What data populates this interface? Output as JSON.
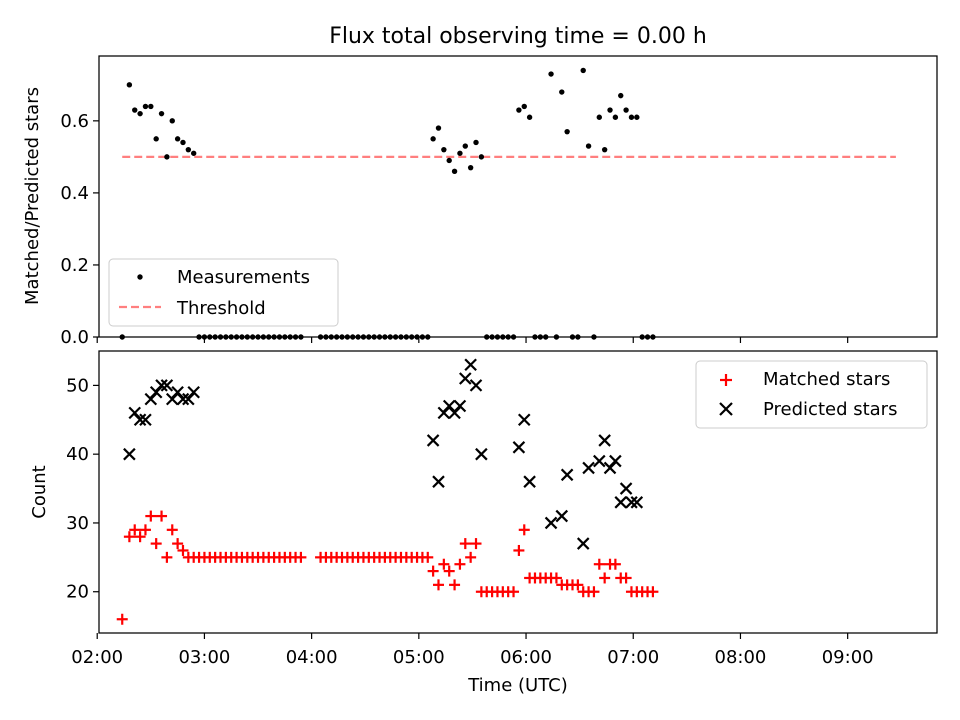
{
  "chart_data": [
    {
      "type": "scatter",
      "title": "Flux total observing time = 0.00 h",
      "ylabel": "Matched/Predicted stars",
      "xlabel": "",
      "xlim": [
        "02:01",
        "09:50"
      ],
      "ylim": [
        0,
        0.78
      ],
      "yticks": [
        0.0,
        0.2,
        0.4,
        0.6
      ],
      "ytick_labels": [
        "0.0",
        "0.2",
        "0.4",
        "0.6"
      ],
      "x_tick_times": [
        "02:00",
        "03:00",
        "04:00",
        "05:00",
        "06:00",
        "07:00",
        "08:00",
        "09:00"
      ],
      "legend_position": "lower-left",
      "series": [
        {
          "name": "Measurements",
          "marker": "dot",
          "color": "#000000",
          "points": [
            [
              "02:14",
              0.0
            ],
            [
              "02:18",
              0.7
            ],
            [
              "02:21",
              0.63
            ],
            [
              "02:24",
              0.62
            ],
            [
              "02:27",
              0.64
            ],
            [
              "02:30",
              0.64
            ],
            [
              "02:33",
              0.55
            ],
            [
              "02:36",
              0.62
            ],
            [
              "02:39",
              0.5
            ],
            [
              "02:42",
              0.6
            ],
            [
              "02:45",
              0.55
            ],
            [
              "02:48",
              0.54
            ],
            [
              "02:51",
              0.52
            ],
            [
              "02:54",
              0.51
            ],
            [
              "02:57",
              0.0
            ],
            [
              "03:00",
              0.0
            ],
            [
              "03:03",
              0.0
            ],
            [
              "03:06",
              0.0
            ],
            [
              "03:09",
              0.0
            ],
            [
              "03:12",
              0.0
            ],
            [
              "03:15",
              0.0
            ],
            [
              "03:18",
              0.0
            ],
            [
              "03:21",
              0.0
            ],
            [
              "03:24",
              0.0
            ],
            [
              "03:27",
              0.0
            ],
            [
              "03:30",
              0.0
            ],
            [
              "03:33",
              0.0
            ],
            [
              "03:36",
              0.0
            ],
            [
              "03:39",
              0.0
            ],
            [
              "03:42",
              0.0
            ],
            [
              "03:45",
              0.0
            ],
            [
              "03:48",
              0.0
            ],
            [
              "03:51",
              0.0
            ],
            [
              "03:54",
              0.0
            ],
            [
              "04:05",
              0.0
            ],
            [
              "04:08",
              0.0
            ],
            [
              "04:11",
              0.0
            ],
            [
              "04:14",
              0.0
            ],
            [
              "04:17",
              0.0
            ],
            [
              "04:20",
              0.0
            ],
            [
              "04:23",
              0.0
            ],
            [
              "04:26",
              0.0
            ],
            [
              "04:29",
              0.0
            ],
            [
              "04:32",
              0.0
            ],
            [
              "04:35",
              0.0
            ],
            [
              "04:38",
              0.0
            ],
            [
              "04:41",
              0.0
            ],
            [
              "04:44",
              0.0
            ],
            [
              "04:47",
              0.0
            ],
            [
              "04:50",
              0.0
            ],
            [
              "04:53",
              0.0
            ],
            [
              "04:56",
              0.0
            ],
            [
              "04:59",
              0.0
            ],
            [
              "05:02",
              0.0
            ],
            [
              "05:05",
              0.0
            ],
            [
              "05:08",
              0.55
            ],
            [
              "05:11",
              0.58
            ],
            [
              "05:14",
              0.52
            ],
            [
              "05:17",
              0.49
            ],
            [
              "05:20",
              0.46
            ],
            [
              "05:23",
              0.51
            ],
            [
              "05:26",
              0.53
            ],
            [
              "05:29",
              0.47
            ],
            [
              "05:32",
              0.54
            ],
            [
              "05:35",
              0.5
            ],
            [
              "05:38",
              0.0
            ],
            [
              "05:41",
              0.0
            ],
            [
              "05:44",
              0.0
            ],
            [
              "05:47",
              0.0
            ],
            [
              "05:50",
              0.0
            ],
            [
              "05:53",
              0.0
            ],
            [
              "05:56",
              0.63
            ],
            [
              "05:59",
              0.64
            ],
            [
              "06:02",
              0.61
            ],
            [
              "06:05",
              0.0
            ],
            [
              "06:08",
              0.0
            ],
            [
              "06:11",
              0.0
            ],
            [
              "06:14",
              0.73
            ],
            [
              "06:17",
              0.0
            ],
            [
              "06:20",
              0.68
            ],
            [
              "06:23",
              0.57
            ],
            [
              "06:26",
              0.0
            ],
            [
              "06:29",
              0.0
            ],
            [
              "06:32",
              0.74
            ],
            [
              "06:35",
              0.53
            ],
            [
              "06:38",
              0.0
            ],
            [
              "06:41",
              0.61
            ],
            [
              "06:44",
              0.52
            ],
            [
              "06:47",
              0.63
            ],
            [
              "06:50",
              0.61
            ],
            [
              "06:53",
              0.67
            ],
            [
              "06:56",
              0.63
            ],
            [
              "06:59",
              0.61
            ],
            [
              "07:02",
              0.61
            ],
            [
              "07:05",
              0.0
            ],
            [
              "07:08",
              0.0
            ],
            [
              "07:11",
              0.0
            ]
          ]
        },
        {
          "name": "Threshold",
          "marker": "dashed-line",
          "color": "#ff7f7f",
          "points": [
            [
              "02:14",
              0.5
            ],
            [
              "09:27",
              0.5
            ]
          ]
        }
      ]
    },
    {
      "type": "scatter",
      "title": "",
      "ylabel": "Count",
      "xlabel": "Time (UTC)",
      "xlim": [
        "02:01",
        "09:50"
      ],
      "ylim": [
        14,
        55
      ],
      "yticks": [
        20,
        30,
        40,
        50
      ],
      "ytick_labels": [
        "20",
        "30",
        "40",
        "50"
      ],
      "x_tick_labels": [
        "02:00",
        "03:00",
        "04:00",
        "05:00",
        "06:00",
        "07:00",
        "08:00",
        "09:00"
      ],
      "legend_position": "upper-right",
      "series": [
        {
          "name": "Matched stars",
          "marker": "plus",
          "color": "#ff0000",
          "points": [
            [
              "02:14",
              16
            ],
            [
              "02:18",
              28
            ],
            [
              "02:21",
              29
            ],
            [
              "02:24",
              28
            ],
            [
              "02:27",
              29
            ],
            [
              "02:30",
              31
            ],
            [
              "02:33",
              27
            ],
            [
              "02:36",
              31
            ],
            [
              "02:39",
              25
            ],
            [
              "02:42",
              29
            ],
            [
              "02:45",
              27
            ],
            [
              "02:48",
              26
            ],
            [
              "02:51",
              25
            ],
            [
              "02:54",
              25
            ],
            [
              "02:57",
              25
            ],
            [
              "03:00",
              25
            ],
            [
              "03:03",
              25
            ],
            [
              "03:06",
              25
            ],
            [
              "03:09",
              25
            ],
            [
              "03:12",
              25
            ],
            [
              "03:15",
              25
            ],
            [
              "03:18",
              25
            ],
            [
              "03:21",
              25
            ],
            [
              "03:24",
              25
            ],
            [
              "03:27",
              25
            ],
            [
              "03:30",
              25
            ],
            [
              "03:33",
              25
            ],
            [
              "03:36",
              25
            ],
            [
              "03:39",
              25
            ],
            [
              "03:42",
              25
            ],
            [
              "03:45",
              25
            ],
            [
              "03:48",
              25
            ],
            [
              "03:51",
              25
            ],
            [
              "03:54",
              25
            ],
            [
              "04:05",
              25
            ],
            [
              "04:08",
              25
            ],
            [
              "04:11",
              25
            ],
            [
              "04:14",
              25
            ],
            [
              "04:17",
              25
            ],
            [
              "04:20",
              25
            ],
            [
              "04:23",
              25
            ],
            [
              "04:26",
              25
            ],
            [
              "04:29",
              25
            ],
            [
              "04:32",
              25
            ],
            [
              "04:35",
              25
            ],
            [
              "04:38",
              25
            ],
            [
              "04:41",
              25
            ],
            [
              "04:44",
              25
            ],
            [
              "04:47",
              25
            ],
            [
              "04:50",
              25
            ],
            [
              "04:53",
              25
            ],
            [
              "04:56",
              25
            ],
            [
              "04:59",
              25
            ],
            [
              "05:02",
              25
            ],
            [
              "05:05",
              25
            ],
            [
              "05:08",
              23
            ],
            [
              "05:11",
              21
            ],
            [
              "05:14",
              24
            ],
            [
              "05:17",
              23
            ],
            [
              "05:20",
              21
            ],
            [
              "05:23",
              24
            ],
            [
              "05:26",
              27
            ],
            [
              "05:29",
              25
            ],
            [
              "05:32",
              27
            ],
            [
              "05:35",
              20
            ],
            [
              "05:38",
              20
            ],
            [
              "05:41",
              20
            ],
            [
              "05:44",
              20
            ],
            [
              "05:47",
              20
            ],
            [
              "05:50",
              20
            ],
            [
              "05:53",
              20
            ],
            [
              "05:56",
              26
            ],
            [
              "05:59",
              29
            ],
            [
              "06:02",
              22
            ],
            [
              "06:05",
              22
            ],
            [
              "06:08",
              22
            ],
            [
              "06:11",
              22
            ],
            [
              "06:14",
              22
            ],
            [
              "06:17",
              22
            ],
            [
              "06:20",
              21
            ],
            [
              "06:23",
              21
            ],
            [
              "06:26",
              21
            ],
            [
              "06:29",
              21
            ],
            [
              "06:32",
              20
            ],
            [
              "06:35",
              20
            ],
            [
              "06:38",
              20
            ],
            [
              "06:41",
              24
            ],
            [
              "06:44",
              22
            ],
            [
              "06:47",
              24
            ],
            [
              "06:50",
              24
            ],
            [
              "06:53",
              22
            ],
            [
              "06:56",
              22
            ],
            [
              "06:59",
              20
            ],
            [
              "07:02",
              20
            ],
            [
              "07:05",
              20
            ],
            [
              "07:08",
              20
            ],
            [
              "07:11",
              20
            ]
          ]
        },
        {
          "name": "Predicted stars",
          "marker": "x",
          "color": "#000000",
          "points": [
            [
              "02:18",
              40
            ],
            [
              "02:21",
              46
            ],
            [
              "02:24",
              45
            ],
            [
              "02:27",
              45
            ],
            [
              "02:30",
              48
            ],
            [
              "02:33",
              49
            ],
            [
              "02:36",
              50
            ],
            [
              "02:39",
              50
            ],
            [
              "02:42",
              48
            ],
            [
              "02:45",
              49
            ],
            [
              "02:48",
              48
            ],
            [
              "02:51",
              48
            ],
            [
              "02:54",
              49
            ],
            [
              "05:08",
              42
            ],
            [
              "05:11",
              36
            ],
            [
              "05:14",
              46
            ],
            [
              "05:17",
              47
            ],
            [
              "05:20",
              46
            ],
            [
              "05:23",
              47
            ],
            [
              "05:26",
              51
            ],
            [
              "05:29",
              53
            ],
            [
              "05:32",
              50
            ],
            [
              "05:35",
              40
            ],
            [
              "05:56",
              41
            ],
            [
              "05:59",
              45
            ],
            [
              "06:02",
              36
            ],
            [
              "06:14",
              30
            ],
            [
              "06:20",
              31
            ],
            [
              "06:23",
              37
            ],
            [
              "06:32",
              27
            ],
            [
              "06:35",
              38
            ],
            [
              "06:41",
              39
            ],
            [
              "06:44",
              42
            ],
            [
              "06:47",
              38
            ],
            [
              "06:50",
              39
            ],
            [
              "06:53",
              33
            ],
            [
              "06:56",
              35
            ],
            [
              "06:59",
              33
            ],
            [
              "07:02",
              33
            ]
          ]
        }
      ]
    }
  ]
}
